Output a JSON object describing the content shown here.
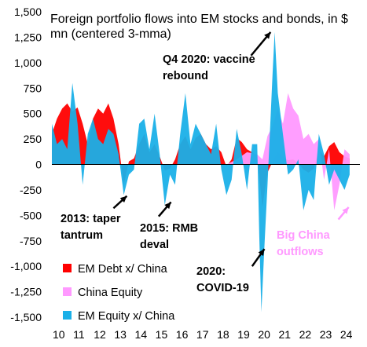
{
  "chart_data": {
    "type": "area",
    "title": "Foreign portfolio flows into EM stocks and bonds, in $ mn (centered 3-mma)",
    "title_lines": [
      "Foreign portfolio flows into EM stocks and bonds, in $",
      "mn (centered 3-mma)"
    ],
    "x_ticks": [
      "10",
      "11",
      "12",
      "13",
      "14",
      "15",
      "16",
      "17",
      "18",
      "19",
      "20",
      "21",
      "22",
      "23",
      "24"
    ],
    "x_range": [
      2010,
      2025
    ],
    "ylim": [
      -1500,
      1500
    ],
    "y_ticks": [
      -1500,
      -1250,
      -1000,
      -750,
      -500,
      -250,
      0,
      250,
      500,
      750,
      1000,
      1250,
      1500
    ],
    "y_tick_labels": [
      "-1,500",
      "-1,250",
      "-1,000",
      "-750",
      "-500",
      "-250",
      "0",
      "250",
      "500",
      "750",
      "1,000",
      "1,250",
      "1,500"
    ],
    "legend_position": "bottom-left",
    "colors": {
      "debt": "#ff0000",
      "china": "#ff99ff",
      "equity": "#1ab0e8",
      "annotation": "#000000",
      "china_annotation": "#ff99ff"
    },
    "series": [
      {
        "name": "EM Debt x/ China",
        "color": "#ff0000",
        "x": [
          2010.0,
          2010.25,
          2010.5,
          2010.75,
          2011.0,
          2011.25,
          2011.5,
          2011.75,
          2012.0,
          2012.25,
          2012.5,
          2012.75,
          2013.0,
          2013.25,
          2013.5,
          2013.75,
          2014.0,
          2014.25,
          2014.5,
          2014.75,
          2015.0,
          2015.25,
          2015.5,
          2015.75,
          2016.0,
          2016.25,
          2016.5,
          2016.75,
          2017.0,
          2017.25,
          2017.5,
          2017.75,
          2018.0,
          2018.25,
          2018.5,
          2018.75,
          2019.0,
          2019.25,
          2019.5,
          2019.75,
          2020.0,
          2020.25,
          2020.5,
          2020.75,
          2021.0,
          2021.25,
          2021.5,
          2021.75,
          2022.0,
          2022.25,
          2022.5,
          2022.75,
          2023.0,
          2023.25,
          2023.5,
          2023.75,
          2024.0,
          2024.25,
          2024.5
        ],
        "values": [
          300,
          450,
          550,
          600,
          520,
          560,
          400,
          200,
          450,
          550,
          500,
          600,
          450,
          200,
          -200,
          30,
          60,
          200,
          300,
          120,
          200,
          80,
          -60,
          -40,
          50,
          200,
          280,
          150,
          260,
          300,
          200,
          150,
          180,
          120,
          -20,
          50,
          260,
          220,
          150,
          120,
          80,
          -420,
          -80,
          30,
          120,
          80,
          40,
          50,
          10,
          -50,
          -80,
          -40,
          150,
          80,
          180,
          220,
          120,
          80,
          60
        ]
      },
      {
        "name": "China Equity",
        "color": "#ff99ff",
        "x": [
          2010.0,
          2010.5,
          2011.0,
          2011.5,
          2012.0,
          2012.5,
          2013.0,
          2013.5,
          2014.0,
          2014.5,
          2015.0,
          2015.5,
          2016.0,
          2016.5,
          2017.0,
          2017.5,
          2018.0,
          2018.5,
          2019.0,
          2019.5,
          2020.0,
          2020.25,
          2020.5,
          2020.75,
          2021.0,
          2021.25,
          2021.5,
          2021.75,
          2022.0,
          2022.25,
          2022.5,
          2022.75,
          2023.0,
          2023.25,
          2023.5,
          2023.75,
          2024.0,
          2024.25,
          2024.5
        ],
        "values": [
          0,
          0,
          0,
          0,
          0,
          0,
          0,
          0,
          0,
          0,
          0,
          0,
          0,
          0,
          0,
          0,
          0,
          0,
          50,
          120,
          100,
          50,
          280,
          380,
          550,
          400,
          700,
          550,
          480,
          250,
          300,
          200,
          250,
          -150,
          150,
          -450,
          -200,
          150,
          100
        ]
      },
      {
        "name": "EM Equity x/ China",
        "color": "#1ab0e8",
        "x": [
          2010.0,
          2010.25,
          2010.5,
          2010.75,
          2011.0,
          2011.25,
          2011.5,
          2011.75,
          2012.0,
          2012.25,
          2012.5,
          2012.75,
          2013.0,
          2013.25,
          2013.5,
          2013.75,
          2014.0,
          2014.25,
          2014.5,
          2014.75,
          2015.0,
          2015.25,
          2015.5,
          2015.75,
          2016.0,
          2016.25,
          2016.5,
          2016.75,
          2017.0,
          2017.25,
          2017.5,
          2017.75,
          2018.0,
          2018.25,
          2018.5,
          2018.75,
          2019.0,
          2019.25,
          2019.5,
          2019.75,
          2020.0,
          2020.1,
          2020.2,
          2020.35,
          2020.5,
          2020.75,
          2020.85,
          2021.0,
          2021.25,
          2021.5,
          2021.75,
          2022.0,
          2022.25,
          2022.5,
          2022.75,
          2023.0,
          2023.25,
          2023.5,
          2023.75,
          2024.0,
          2024.25,
          2024.5
        ],
        "values": [
          400,
          200,
          250,
          150,
          800,
          400,
          -200,
          300,
          450,
          250,
          200,
          350,
          300,
          100,
          -300,
          -100,
          -50,
          400,
          450,
          150,
          500,
          100,
          -400,
          -100,
          -200,
          300,
          700,
          200,
          400,
          300,
          200,
          100,
          400,
          -50,
          -300,
          -150,
          350,
          100,
          -250,
          200,
          200,
          -700,
          -1450,
          -800,
          -200,
          900,
          1300,
          700,
          300,
          -100,
          -50,
          50,
          -450,
          -250,
          -350,
          300,
          100,
          -200,
          -50,
          -150,
          -250,
          -100
        ]
      }
    ],
    "annotations": [
      {
        "lines": [
          "Q4 2020: vaccine",
          "rebound"
        ],
        "arrow_from": [
          2019.7,
          1070
        ],
        "arrow_to": [
          2020.65,
          1300
        ],
        "color": "#000000"
      },
      {
        "lines": [
          "2013: taper",
          "tantrum"
        ],
        "arrow_from": [
          2013.0,
          -430
        ],
        "arrow_to": [
          2013.65,
          -310
        ],
        "color": "#000000"
      },
      {
        "lines": [
          "2015: RMB",
          "deval"
        ],
        "arrow_from": [
          2015.2,
          -510
        ],
        "arrow_to": [
          2015.8,
          -370
        ],
        "color": "#000000"
      },
      {
        "lines": [
          "2020:",
          "COVID-19"
        ],
        "arrow_from": [
          2019.75,
          -1000
        ],
        "arrow_to": [
          2020.35,
          -830
        ],
        "color": "#000000"
      },
      {
        "lines": [
          "Big China",
          "outflows"
        ],
        "arrow_from": [
          2023.95,
          -540
        ],
        "arrow_to": [
          2024.45,
          -420
        ],
        "color": "#ff99ff"
      }
    ]
  }
}
